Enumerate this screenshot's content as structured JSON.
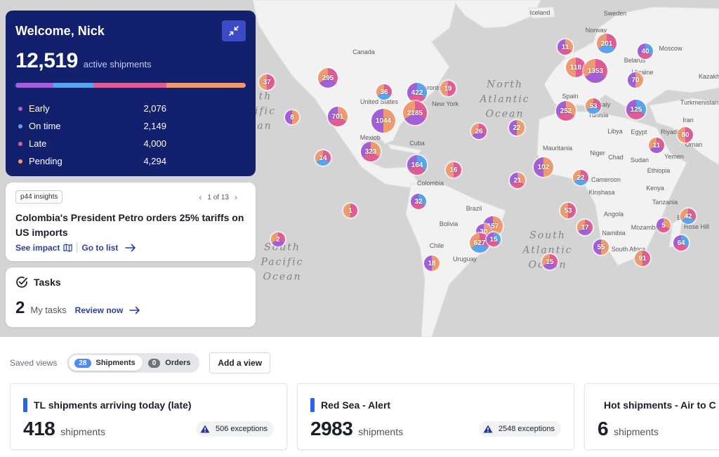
{
  "welcome": {
    "title": "Welcome, Nick",
    "active_count": "12,519",
    "active_label": "active shipments",
    "status_colors": {
      "early": "#a25fd8",
      "on_time": "#5aa3ee",
      "late": "#df5c94",
      "pending": "#ef9a70"
    },
    "status_fractions": [
      0.166,
      0.172,
      0.319,
      0.343
    ],
    "statuses": [
      {
        "label": "Early",
        "value": "2,076"
      },
      {
        "label": "On time",
        "value": "2,149"
      },
      {
        "label": "Late",
        "value": "4,000"
      },
      {
        "label": "Pending",
        "value": "4,294"
      }
    ]
  },
  "insights": {
    "tag": "p44 insights",
    "pager": "1 of 13",
    "headline": "Colombia's President Petro orders 25% tariffs on US imports",
    "see_impact": "See impact",
    "go_to_list": "Go to list"
  },
  "tasks": {
    "title": "Tasks",
    "count": "2",
    "label": "My tasks",
    "review": "Review now"
  },
  "saved_views": {
    "label": "Saved views",
    "shipments_count": "28",
    "shipments_label": "Shipments",
    "orders_count": "0",
    "orders_label": "Orders",
    "add_view": "Add a view"
  },
  "view_cards": [
    {
      "title": "TL shipments arriving today (late)",
      "count": "418",
      "unit": "shipments",
      "exceptions": "506 exceptions"
    },
    {
      "title": "Red Sea - Alert",
      "count": "2983",
      "unit": "shipments",
      "exceptions": "2548 exceptions"
    },
    {
      "title": "Hot shipments - Air to C",
      "count": "6",
      "unit": "shipments",
      "exceptions": ""
    }
  ],
  "map": {
    "oceans": [
      {
        "text": "North\nAtlantic\nOcean"
      },
      {
        "text": "South\nAtlantic\nOcean"
      },
      {
        "text": "South\nPacific\nOcean"
      },
      {
        "text": "ific"
      },
      {
        "text": "an"
      },
      {
        "text": "th"
      }
    ],
    "places": [
      "Iceland",
      "Sweden",
      "Norway",
      "Moscow",
      "Belarus",
      "Ukraine",
      "Kazakh",
      "Canada",
      "United States",
      "Toronto",
      "New York",
      "Mexico",
      "Cuba",
      "Spain",
      "Italy",
      "Tunisia",
      "Turkmenistan",
      "Libya",
      "Egypt",
      "Iran",
      "Riyadh",
      "Oman",
      "Mauritania",
      "Niger",
      "Chad",
      "Sudan",
      "Ethiopia",
      "Yemen",
      "Kenya",
      "Tanzania",
      "Cameroon",
      "Kinshasa",
      "Angola",
      "Namibia",
      "Mozambi",
      "South Africa",
      "Colombia",
      "Brazil",
      "Bolivia",
      "Chile",
      "Uruguay",
      "Rose Hill",
      "Be"
    ],
    "clusters": [
      {
        "value": "37"
      },
      {
        "value": "295"
      },
      {
        "value": "8"
      },
      {
        "value": "701"
      },
      {
        "value": "36"
      },
      {
        "value": "422"
      },
      {
        "value": "19"
      },
      {
        "value": "2185"
      },
      {
        "value": "1044"
      },
      {
        "value": "323"
      },
      {
        "value": "14"
      },
      {
        "value": "164"
      },
      {
        "value": "16"
      },
      {
        "value": "26"
      },
      {
        "value": "22"
      },
      {
        "value": "11"
      },
      {
        "value": "201"
      },
      {
        "value": "40"
      },
      {
        "value": "118"
      },
      {
        "value": "1353"
      },
      {
        "value": "70"
      },
      {
        "value": "252"
      },
      {
        "value": "53"
      },
      {
        "value": "125"
      },
      {
        "value": "80"
      },
      {
        "value": "11"
      },
      {
        "value": "102"
      },
      {
        "value": "21"
      },
      {
        "value": "22"
      },
      {
        "value": "32"
      },
      {
        "value": "1"
      },
      {
        "value": "2"
      },
      {
        "value": "157"
      },
      {
        "value": "30"
      },
      {
        "value": "627"
      },
      {
        "value": "15"
      },
      {
        "value": "53"
      },
      {
        "value": "17"
      },
      {
        "value": "55"
      },
      {
        "value": "5"
      },
      {
        "value": "42"
      },
      {
        "value": "64"
      },
      {
        "value": "91"
      },
      {
        "value": "15"
      },
      {
        "value": "18"
      }
    ]
  }
}
